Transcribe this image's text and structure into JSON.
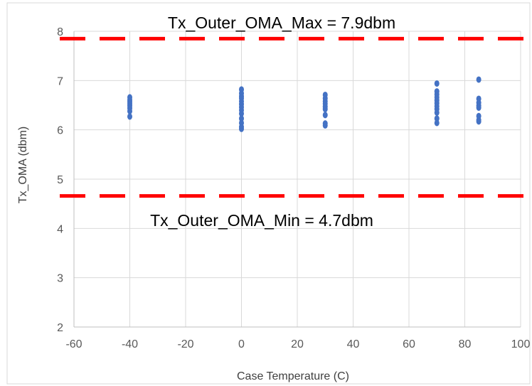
{
  "chart_data": {
    "type": "scatter",
    "xlabel": "Case Temperature (C)",
    "ylabel": "Tx_OMA (dbm)",
    "xlim": [
      -60,
      100
    ],
    "ylim": [
      2,
      8
    ],
    "xticks": [
      -60,
      -40,
      -20,
      0,
      20,
      40,
      60,
      80,
      100
    ],
    "yticks": [
      2,
      3,
      4,
      5,
      6,
      7,
      8
    ],
    "grid": true,
    "colors": {
      "points": "#4472C4",
      "limit_lines": "#FF0000",
      "grid": "#D9D9D9",
      "axis": "#BFBFBF"
    },
    "series": [
      {
        "points": [
          [
            -40,
            6.27
          ],
          [
            -40,
            6.38
          ],
          [
            -40,
            6.44
          ],
          [
            -40,
            6.49
          ],
          [
            -40,
            6.53
          ],
          [
            -40,
            6.57
          ],
          [
            -40,
            6.61
          ],
          [
            -40,
            6.66
          ],
          [
            0,
            6.02
          ],
          [
            0,
            6.06
          ],
          [
            0,
            6.14
          ],
          [
            0,
            6.23
          ],
          [
            0,
            6.33
          ],
          [
            0,
            6.4
          ],
          [
            0,
            6.46
          ],
          [
            0,
            6.52
          ],
          [
            0,
            6.58
          ],
          [
            0,
            6.64
          ],
          [
            0,
            6.68
          ],
          [
            0,
            6.74
          ],
          [
            0,
            6.82
          ],
          [
            30,
            6.09
          ],
          [
            30,
            6.13
          ],
          [
            30,
            6.3
          ],
          [
            30,
            6.42
          ],
          [
            30,
            6.47
          ],
          [
            30,
            6.53
          ],
          [
            30,
            6.58
          ],
          [
            30,
            6.64
          ],
          [
            30,
            6.71
          ],
          [
            70,
            6.14
          ],
          [
            70,
            6.23
          ],
          [
            70,
            6.35
          ],
          [
            70,
            6.42
          ],
          [
            70,
            6.48
          ],
          [
            70,
            6.54
          ],
          [
            70,
            6.6
          ],
          [
            70,
            6.66
          ],
          [
            70,
            6.72
          ],
          [
            70,
            6.78
          ],
          [
            70,
            6.94
          ],
          [
            85,
            6.17
          ],
          [
            85,
            6.2
          ],
          [
            85,
            6.28
          ],
          [
            85,
            6.45
          ],
          [
            85,
            6.49
          ],
          [
            85,
            6.55
          ],
          [
            85,
            6.63
          ],
          [
            85,
            7.02
          ]
        ]
      }
    ],
    "limits": [
      {
        "y": 7.85,
        "label": "Tx_Outer_OMA_Max = 7.9dbm",
        "style": "dashed"
      },
      {
        "y": 4.66,
        "label": "Tx_Outer_OMA_Min = 4.7dbm",
        "style": "dashed"
      }
    ]
  }
}
